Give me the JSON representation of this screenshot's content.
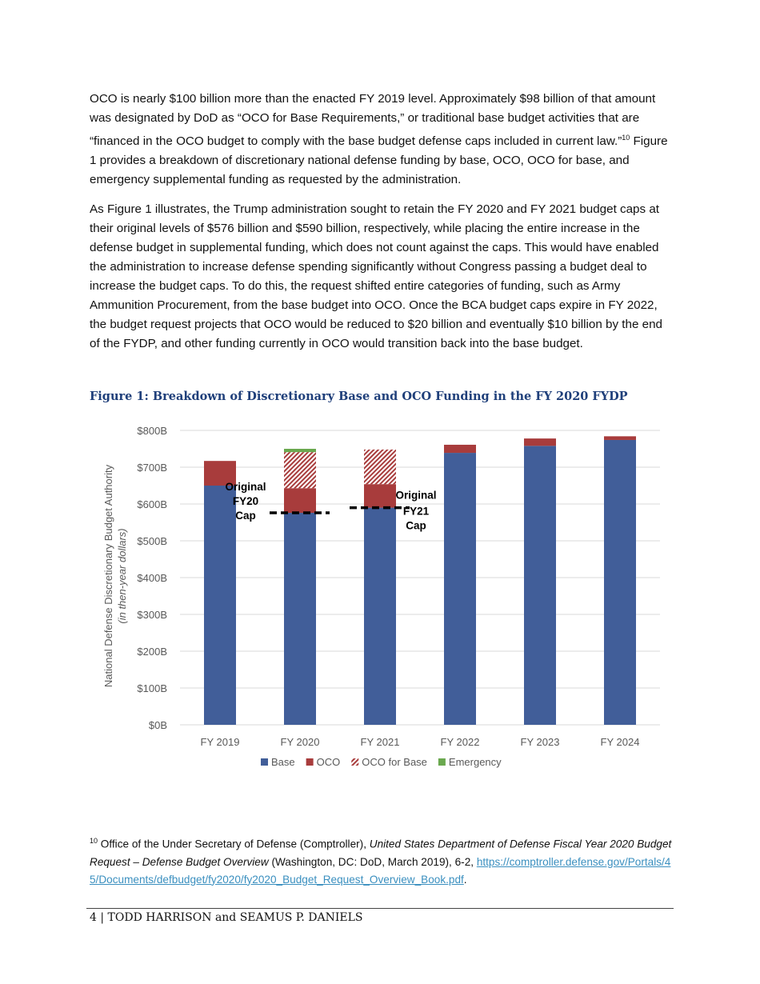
{
  "paragraphs": [
    {
      "before": "OCO is nearly $100 billion more than the enacted FY 2019 level. Approximately $98 billion of that amount was designated by DoD as “OCO for Base Requirements,” or traditional base budget activities that are “financed in the OCO budget to comply with the base budget defense caps included in current law.”",
      "sup": "10",
      "after": " Figure 1 provides a breakdown of discretionary national defense funding by base, OCO, OCO for base, and emergency supplemental funding as requested by the administration."
    },
    {
      "text": "As Figure 1 illustrates, the Trump administration sought to retain the FY 2020 and FY 2021 budget caps at their original levels of $576 billion and $590 billion, respectively, while placing the entire increase in the defense budget in supplemental funding, which does not count against the caps. This would have enabled the administration to increase defense spending significantly without Congress passing a budget deal to increase the budget caps. To do this, the request shifted entire categories of funding, such as Army Ammunition Procurement, from the base budget into OCO. Once the BCA budget caps expire in FY 2022, the budget request projects that OCO would be reduced to $20 billion and eventually $10 billion by the end of the FYDP, and other funding currently in OCO would transition back into the base budget."
    }
  ],
  "figure_title": "Figure 1: Breakdown of Discretionary Base and OCO Funding in the FY 2020 FYDP",
  "chart_data": {
    "type": "bar",
    "stacked": true,
    "categories": [
      "FY 2019",
      "FY 2020",
      "FY 2021",
      "FY 2022",
      "FY 2023",
      "FY 2024"
    ],
    "series": [
      {
        "name": "Base",
        "color": "#415e99",
        "values": [
          650,
          576,
          590,
          739,
          758,
          774
        ]
      },
      {
        "name": "OCO",
        "color": "#a83c3c",
        "values": [
          67,
          67,
          64,
          22,
          20,
          10
        ]
      },
      {
        "name": "OCO for Base",
        "color": "#a83c3c",
        "pattern": "hatched",
        "values": [
          0,
          98,
          94,
          0,
          0,
          0
        ]
      },
      {
        "name": "Emergency",
        "color": "#6aa84f",
        "values": [
          0,
          9,
          0,
          0,
          0,
          0
        ]
      }
    ],
    "ylabel": "National Defense Discretionary Budget Authority",
    "ylabel_sub": "(in then-year dollars)",
    "ylim": [
      0,
      800
    ],
    "yticks": [
      "$0B",
      "$100B",
      "$200B",
      "$300B",
      "$400B",
      "$500B",
      "$600B",
      "$700B",
      "$800B"
    ],
    "grid": true,
    "legend": "bottom",
    "annotations": [
      {
        "lines": [
          "Original",
          "FY20",
          "Cap"
        ],
        "cap_value": 576,
        "category": "FY 2020"
      },
      {
        "lines": [
          "Original",
          "FY21",
          "Cap"
        ],
        "cap_value": 590,
        "category": "FY 2021"
      }
    ]
  },
  "footnote": {
    "num": "10",
    "text1": " Office of the Under Secretary of Defense (Comptroller), ",
    "italic": "United States Department of Defense Fiscal Year 2020 Budget Request – Defense Budget Overview",
    "text2": " (Washington, DC: DoD, March 2019), 6-2, ",
    "link": "https://comptroller.defense.gov/Portals/45/Documents/defbudget/fy2020/fy2020_Budget_Request_Overview_Book.pdf",
    "end": "."
  },
  "footer": "4 | TODD HARRISON and SEAMUS P. DANIELS"
}
